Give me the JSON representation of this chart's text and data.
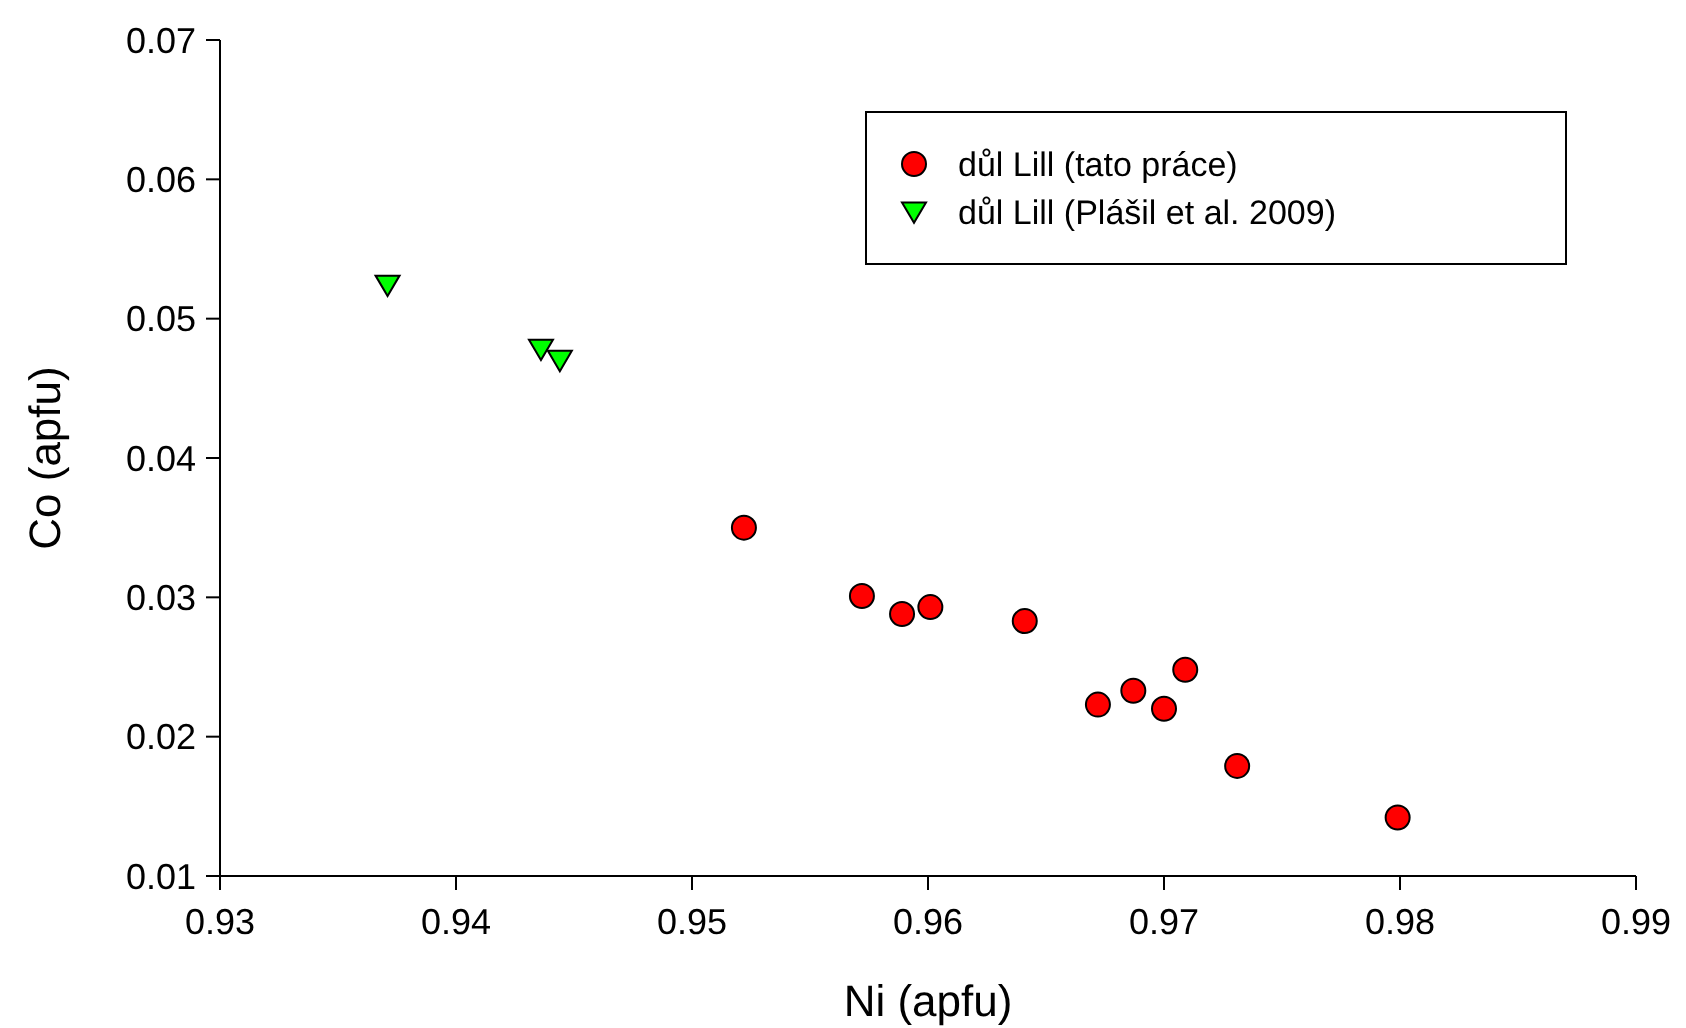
{
  "chart_data": {
    "type": "scatter",
    "xlabel": "Ni (apfu)",
    "ylabel": "Co (apfu)",
    "xlim": [
      0.93,
      0.99
    ],
    "ylim": [
      0.01,
      0.07
    ],
    "xticks": [
      0.93,
      0.94,
      0.95,
      0.96,
      0.97,
      0.98,
      0.99
    ],
    "yticks": [
      0.01,
      0.02,
      0.03,
      0.04,
      0.05,
      0.06,
      0.07
    ],
    "legend": "top right",
    "grid": false,
    "series": [
      {
        "name": "důl Lill (tato práce)",
        "color": "#ff0000",
        "marker": "circle",
        "x": [
          0.9522,
          0.9572,
          0.9589,
          0.9601,
          0.9641,
          0.9672,
          0.9687,
          0.97,
          0.9709,
          0.9731,
          0.9799
        ],
        "values": [
          0.035,
          0.0301,
          0.0288,
          0.0293,
          0.0283,
          0.0223,
          0.0233,
          0.022,
          0.0248,
          0.0179,
          0.0142
        ]
      },
      {
        "name": "důl Lill (Plášil et al. 2009)",
        "color": "#00ff00",
        "marker": "triangle",
        "x": [
          0.9371,
          0.9436,
          0.9444
        ],
        "values": [
          0.0524,
          0.0478,
          0.047
        ]
      }
    ]
  }
}
